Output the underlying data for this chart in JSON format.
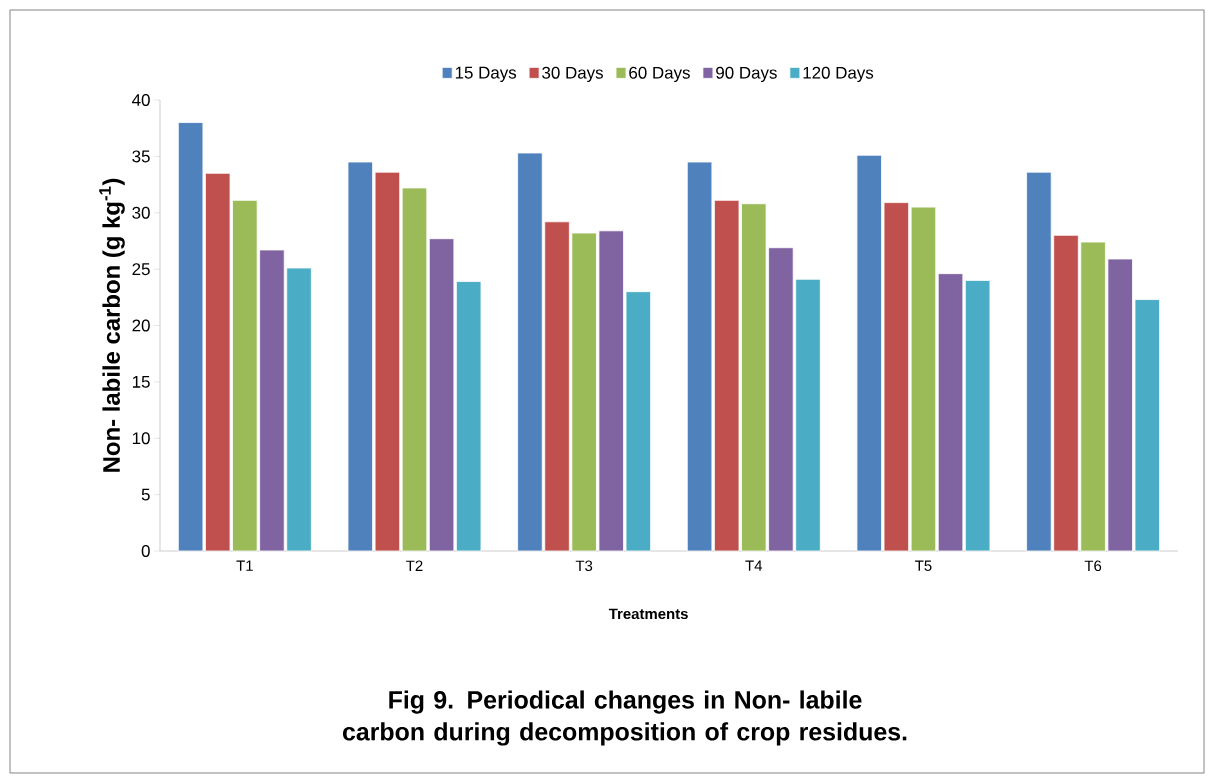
{
  "chart_data": {
    "type": "bar",
    "title": "Fig 9. Periodical changes in Non- labile carbon during decomposition of crop  residues.",
    "xlabel": "Treatments",
    "ylabel": "Non- labile carbon (g kg$^{-1}$)",
    "categories": [
      "T1",
      "T2",
      "T3",
      "T4",
      "T5",
      "T6"
    ],
    "series": [
      {
        "name": "15 Days",
        "color": "#4f81bd",
        "values": [
          38.0,
          34.5,
          35.3,
          34.5,
          35.1,
          33.6
        ]
      },
      {
        "name": "30 Days",
        "color": "#c0504d",
        "values": [
          33.5,
          33.6,
          29.2,
          31.1,
          30.9,
          28.0
        ]
      },
      {
        "name": "60 Days",
        "color": "#9bbb59",
        "values": [
          31.1,
          32.2,
          28.2,
          30.8,
          30.5,
          27.4
        ]
      },
      {
        "name": "90 Days",
        "color": "#8064a2",
        "values": [
          26.7,
          27.7,
          28.4,
          26.9,
          24.6,
          25.9
        ]
      },
      {
        "name": "120 Days",
        "color": "#4bacc6",
        "values": [
          25.1,
          23.9,
          23.0,
          24.1,
          24.0,
          22.3
        ]
      }
    ],
    "ylim": [
      0,
      40
    ],
    "yticks": [
      0,
      5,
      10,
      15,
      20,
      25,
      30,
      35,
      40
    ],
    "legend": "top"
  }
}
